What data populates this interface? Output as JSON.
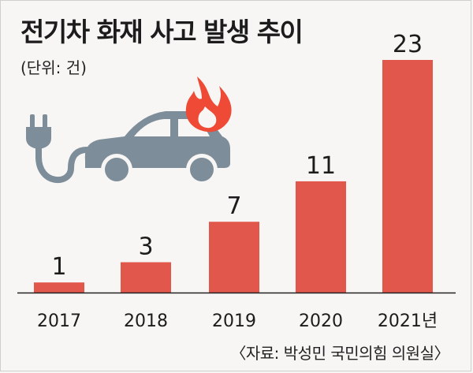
{
  "header": {
    "title": "전기차 화재 사고 발생 추이",
    "unit": "(단위: 건)"
  },
  "footer": {
    "source": "〈자료: 박성민 국민의힘 의원실〉"
  },
  "colors": {
    "bar": "#e2574c",
    "car": "#7d8d99",
    "flame": "#ee4a35",
    "text": "#1c1c1c"
  },
  "icons": [
    "electric-car-icon",
    "flame-icon",
    "plug-icon"
  ],
  "chart_data": {
    "type": "bar",
    "categories": [
      "2017",
      "2018",
      "2019",
      "2020",
      "2021년"
    ],
    "values": [
      1,
      3,
      7,
      11,
      23
    ],
    "title": "전기차 화재 사고 발생 추이",
    "xlabel": "",
    "ylabel": "",
    "ylim": [
      0,
      23
    ],
    "grid": false,
    "legend": "none"
  }
}
